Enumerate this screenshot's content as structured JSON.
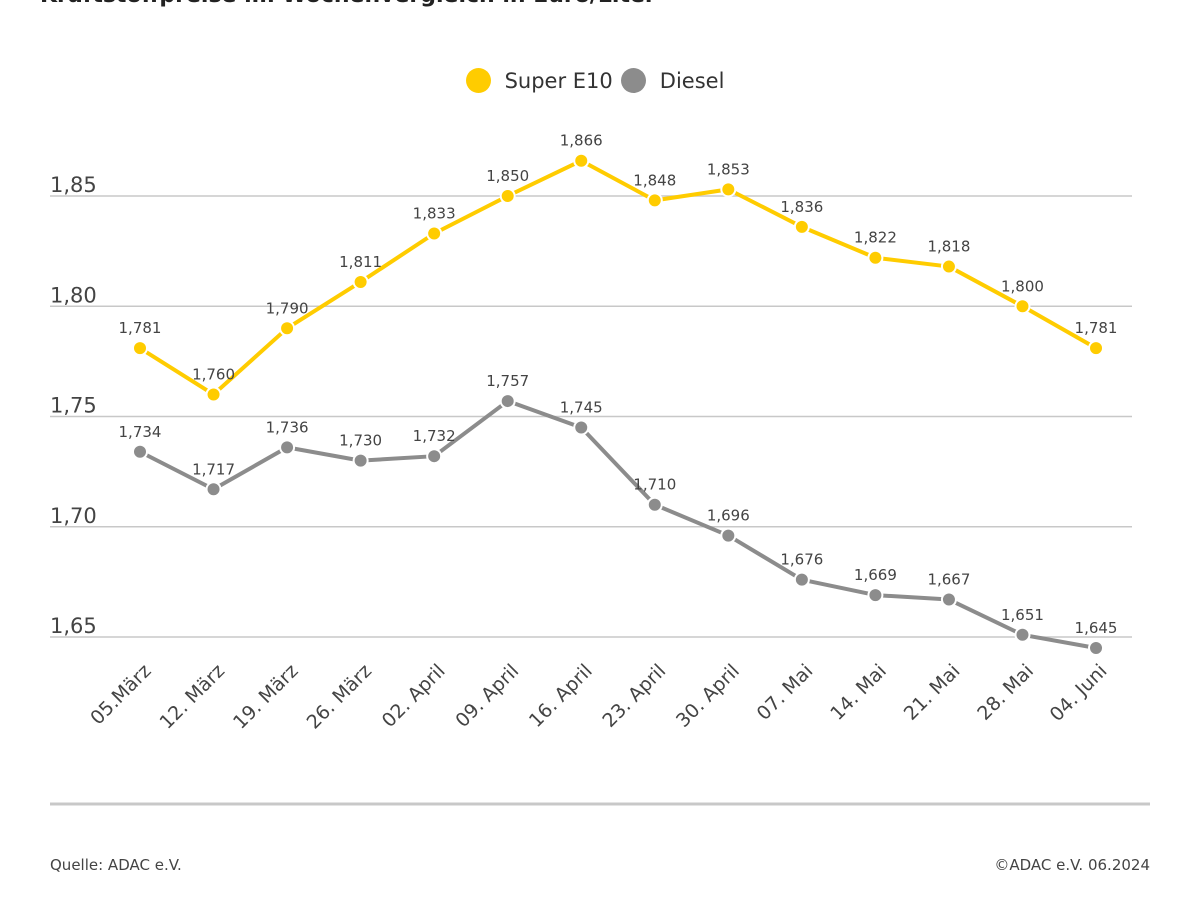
{
  "chart_data": {
    "type": "line",
    "title": "Kraftstoffpreise im Wochenvergleich in Euro/Liter",
    "categories": [
      "05.März",
      "12. März",
      "19. März",
      "26. März",
      "02. April",
      "09. April",
      "16. April",
      "23. April",
      "30. April",
      "07. Mai",
      "14. Mai",
      "21. Mai",
      "28. Mai",
      "04. Juni"
    ],
    "series": [
      {
        "name": "Super E10",
        "color": "#ffcc00",
        "values": [
          1.781,
          1.76,
          1.79,
          1.811,
          1.833,
          1.85,
          1.866,
          1.848,
          1.853,
          1.836,
          1.822,
          1.818,
          1.8,
          1.781
        ]
      },
      {
        "name": "Diesel",
        "color": "#8c8c8c",
        "values": [
          1.734,
          1.717,
          1.736,
          1.73,
          1.732,
          1.757,
          1.745,
          1.71,
          1.696,
          1.676,
          1.669,
          1.667,
          1.651,
          1.645
        ]
      }
    ],
    "yticks": [
      "1,65",
      "1,70",
      "1,75",
      "1,80",
      "1,85"
    ],
    "ylim": [
      1.645,
      1.875
    ],
    "grid": true,
    "legend": "top-center",
    "decimal_separator": ","
  },
  "footer": {
    "source": "Quelle: ADAC e.V.",
    "copyright": "©ADAC e.V. 06.2024"
  }
}
